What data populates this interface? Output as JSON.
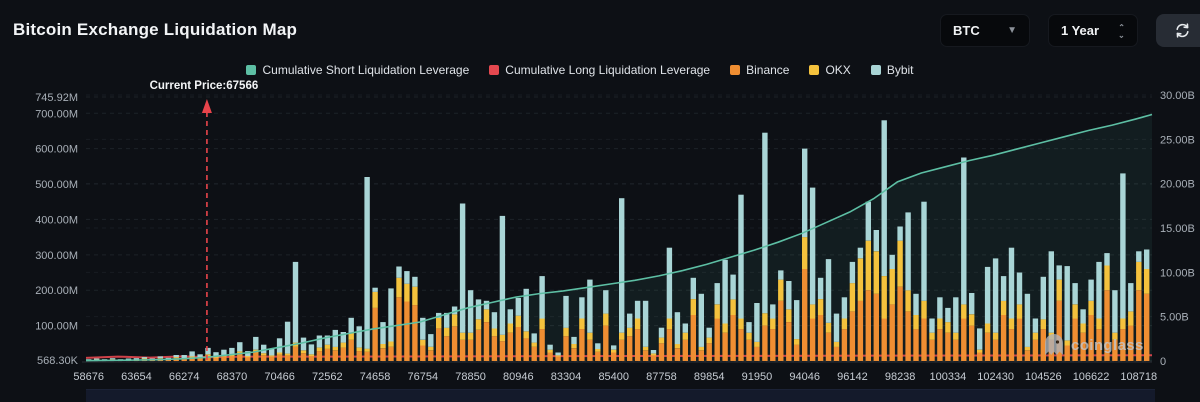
{
  "header": {
    "title": "Bitcoin Exchange Liquidation Map"
  },
  "controls": {
    "symbol_select": {
      "value": "BTC"
    },
    "range_select": {
      "value": "1 Year"
    }
  },
  "legend": {
    "items": [
      {
        "label": "Cumulative Short Liquidation Leverage",
        "color": "#5dbfa4"
      },
      {
        "label": "Cumulative Long Liquidation Leverage",
        "color": "#e4484f"
      },
      {
        "label": "Binance",
        "color": "#ef8e32"
      },
      {
        "label": "OKX",
        "color": "#f4c23d"
      },
      {
        "label": "Bybit",
        "color": "#a9d5d6"
      }
    ]
  },
  "watermark": {
    "text": "coinglass"
  },
  "chart_data": {
    "type": "bar+line",
    "title": "Bitcoin Exchange Liquidation Map",
    "annotation": {
      "label": "Current Price:67566",
      "price": 67566,
      "bar_index": 15.2,
      "color": "#e8444b"
    },
    "x_ticks": [
      "58676",
      "63654",
      "66274",
      "68370",
      "70466",
      "72562",
      "74658",
      "76754",
      "78850",
      "80946",
      "83304",
      "85400",
      "87758",
      "89854",
      "91950",
      "94046",
      "96142",
      "98238",
      "100334",
      "102430",
      "104526",
      "106622",
      "108718"
    ],
    "left_axis": {
      "unit": "M",
      "labels": [
        "745.92M",
        "700.00M",
        "600.00M",
        "500.00M",
        "400.00M",
        "300.00M",
        "200.00M",
        "100.00M",
        "568.30K"
      ],
      "values": [
        745.92,
        700,
        600,
        500,
        400,
        300,
        200,
        100,
        0.5683
      ]
    },
    "right_axis": {
      "unit": "B",
      "labels": [
        "30.00B",
        "25.00B",
        "20.00B",
        "15.00B",
        "10.00B",
        "5.00B",
        "0"
      ],
      "values": [
        30,
        25,
        20,
        15,
        10,
        5,
        0
      ]
    },
    "bar_stack_order": [
      "Binance",
      "OKX",
      "Bybit"
    ],
    "bar_colors": [
      "#ef8e32",
      "#f4c23d",
      "#a9d5d6"
    ],
    "bars_unit": "M",
    "bars": [
      [
        2,
        1,
        2
      ],
      [
        3,
        1,
        3
      ],
      [
        2,
        1,
        2
      ],
      [
        4,
        1,
        3
      ],
      [
        2,
        1,
        2
      ],
      [
        3,
        1,
        3
      ],
      [
        3,
        1,
        4
      ],
      [
        5,
        2,
        4
      ],
      [
        3,
        1,
        3
      ],
      [
        6,
        2,
        5
      ],
      [
        4,
        1,
        4
      ],
      [
        8,
        3,
        6
      ],
      [
        6,
        2,
        9
      ],
      [
        10,
        3,
        14
      ],
      [
        7,
        2,
        10
      ],
      [
        14,
        5,
        18
      ],
      [
        9,
        3,
        13
      ],
      [
        12,
        4,
        16
      ],
      [
        14,
        5,
        18
      ],
      [
        20,
        7,
        26
      ],
      [
        10,
        4,
        14
      ],
      [
        24,
        8,
        36
      ],
      [
        16,
        6,
        24
      ],
      [
        12,
        4,
        18
      ],
      [
        18,
        6,
        40
      ],
      [
        16,
        5,
        90
      ],
      [
        40,
        12,
        228
      ],
      [
        22,
        8,
        36
      ],
      [
        14,
        5,
        28
      ],
      [
        28,
        10,
        34
      ],
      [
        34,
        12,
        26
      ],
      [
        30,
        10,
        48
      ],
      [
        38,
        14,
        30
      ],
      [
        60,
        20,
        42
      ],
      [
        28,
        10,
        60
      ],
      [
        26,
        9,
        485
      ],
      [
        150,
        45,
        12
      ],
      [
        36,
        12,
        62
      ],
      [
        40,
        15,
        150
      ],
      [
        180,
        55,
        32
      ],
      [
        168,
        50,
        36
      ],
      [
        158,
        52,
        28
      ],
      [
        44,
        16,
        62
      ],
      [
        30,
        10,
        36
      ],
      [
        92,
        30,
        14
      ],
      [
        70,
        24,
        42
      ],
      [
        98,
        34,
        22
      ],
      [
        60,
        20,
        365
      ],
      [
        60,
        20,
        120
      ],
      [
        88,
        30,
        56
      ],
      [
        110,
        36,
        24
      ],
      [
        70,
        22,
        46
      ],
      [
        56,
        18,
        336
      ],
      [
        80,
        26,
        40
      ],
      [
        96,
        32,
        50
      ],
      [
        64,
        20,
        120
      ],
      [
        40,
        12,
        26
      ],
      [
        90,
        30,
        120
      ],
      [
        24,
        8,
        14
      ],
      [
        12,
        4,
        8
      ],
      [
        70,
        24,
        90
      ],
      [
        36,
        12,
        20
      ],
      [
        90,
        30,
        60
      ],
      [
        60,
        20,
        150
      ],
      [
        26,
        8,
        16
      ],
      [
        100,
        34,
        66
      ],
      [
        24,
        8,
        12
      ],
      [
        60,
        20,
        380
      ],
      [
        70,
        24,
        40
      ],
      [
        90,
        30,
        50
      ],
      [
        30,
        10,
        130
      ],
      [
        16,
        5,
        10
      ],
      [
        50,
        16,
        28
      ],
      [
        90,
        30,
        200
      ],
      [
        36,
        12,
        90
      ],
      [
        60,
        20,
        26
      ],
      [
        130,
        45,
        60
      ],
      [
        30,
        10,
        150
      ],
      [
        50,
        16,
        28
      ],
      [
        120,
        40,
        60
      ],
      [
        80,
        26,
        180
      ],
      [
        130,
        44,
        70
      ],
      [
        90,
        30,
        350
      ],
      [
        60,
        20,
        30
      ],
      [
        40,
        14,
        110
      ],
      [
        100,
        35,
        510
      ],
      [
        90,
        30,
        40
      ],
      [
        170,
        60,
        26
      ],
      [
        110,
        36,
        80
      ],
      [
        46,
        16,
        110
      ],
      [
        260,
        90,
        250
      ],
      [
        120,
        40,
        330
      ],
      [
        130,
        45,
        60
      ],
      [
        80,
        28,
        180
      ],
      [
        40,
        14,
        80
      ],
      [
        90,
        30,
        60
      ],
      [
        140,
        80,
        60
      ],
      [
        170,
        120,
        30
      ],
      [
        200,
        140,
        110
      ],
      [
        190,
        120,
        60
      ],
      [
        120,
        120,
        440
      ],
      [
        160,
        100,
        40
      ],
      [
        210,
        130,
        40
      ],
      [
        140,
        60,
        220
      ],
      [
        90,
        40,
        60
      ],
      [
        120,
        50,
        280
      ],
      [
        60,
        20,
        40
      ],
      [
        90,
        30,
        60
      ],
      [
        80,
        30,
        40
      ],
      [
        60,
        20,
        100
      ],
      [
        120,
        40,
        415
      ],
      [
        100,
        32,
        60
      ],
      [
        24,
        8,
        60
      ],
      [
        80,
        26,
        160
      ],
      [
        60,
        20,
        210
      ],
      [
        130,
        40,
        70
      ],
      [
        90,
        30,
        200
      ],
      [
        120,
        40,
        90
      ],
      [
        30,
        10,
        150
      ],
      [
        60,
        20,
        40
      ],
      [
        90,
        28,
        120
      ],
      [
        60,
        20,
        230
      ],
      [
        170,
        60,
        40
      ],
      [
        44,
        14,
        210
      ],
      [
        120,
        40,
        60
      ],
      [
        80,
        26,
        40
      ],
      [
        130,
        40,
        60
      ],
      [
        90,
        30,
        160
      ],
      [
        200,
        70,
        35
      ],
      [
        60,
        20,
        120
      ],
      [
        90,
        30,
        410
      ],
      [
        100,
        40,
        80
      ],
      [
        200,
        80,
        30
      ],
      [
        190,
        70,
        55
      ]
    ],
    "short_line": {
      "name": "Cumulative Short Liquidation Leverage",
      "color": "#5dbfa4",
      "unit": "B",
      "points": [
        [
          0,
          0.05
        ],
        [
          3,
          0.07
        ],
        [
          6,
          0.1
        ],
        [
          9,
          0.15
        ],
        [
          12,
          0.25
        ],
        [
          15,
          0.4
        ],
        [
          18,
          0.7
        ],
        [
          21,
          1.0
        ],
        [
          24,
          1.5
        ],
        [
          27,
          2.0
        ],
        [
          30,
          2.6
        ],
        [
          33,
          3.1
        ],
        [
          36,
          3.6
        ],
        [
          39,
          4.0
        ],
        [
          42,
          4.4
        ],
        [
          45,
          5.2
        ],
        [
          48,
          6.0
        ],
        [
          51,
          6.6
        ],
        [
          54,
          7.2
        ],
        [
          57,
          7.6
        ],
        [
          60,
          7.9
        ],
        [
          63,
          8.3
        ],
        [
          66,
          8.7
        ],
        [
          69,
          9.1
        ],
        [
          72,
          9.6
        ],
        [
          75,
          10.2
        ],
        [
          78,
          10.9
        ],
        [
          81,
          11.7
        ],
        [
          84,
          12.5
        ],
        [
          87,
          13.4
        ],
        [
          90,
          14.4
        ],
        [
          93,
          15.6
        ],
        [
          96,
          16.8
        ],
        [
          99,
          18.3
        ],
        [
          102,
          20.2
        ],
        [
          105,
          21.2
        ],
        [
          108,
          21.9
        ],
        [
          111,
          22.6
        ],
        [
          114,
          23.2
        ],
        [
          117,
          23.9
        ],
        [
          120,
          24.6
        ],
        [
          123,
          25.3
        ],
        [
          126,
          26.0
        ],
        [
          129,
          26.6
        ],
        [
          132,
          27.3
        ],
        [
          134,
          27.8
        ]
      ]
    },
    "long_line": {
      "name": "Cumulative Long Liquidation Leverage",
      "color": "#e4484f",
      "unit": "B",
      "points": [
        [
          0,
          0.35
        ],
        [
          4,
          0.5
        ],
        [
          8,
          0.38
        ],
        [
          12,
          0.52
        ],
        [
          16,
          0.42
        ],
        [
          20,
          0.5
        ],
        [
          30,
          0.5
        ],
        [
          60,
          0.55
        ],
        [
          100,
          0.6
        ],
        [
          134,
          0.65
        ]
      ]
    },
    "layout_hints": {
      "grid": "dashed",
      "legend_position": "top-center",
      "bars_axis": "left(M)",
      "lines_axis": "right(B)"
    }
  }
}
